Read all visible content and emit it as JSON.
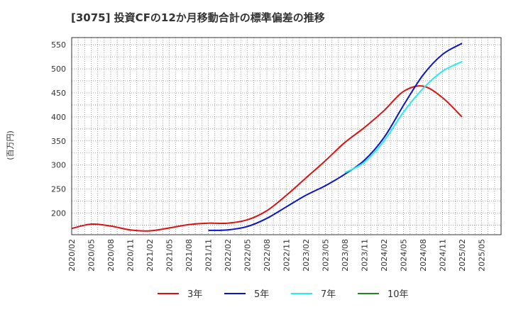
{
  "chart_data": {
    "type": "line",
    "title": "[3075]  投資CFの12か月移動合計の標準偏差の推移",
    "ylabel": "(百万円)",
    "xlabel": "",
    "ylim": [
      155,
      565
    ],
    "yticks": [
      200,
      250,
      300,
      350,
      400,
      450,
      500,
      550
    ],
    "xticks": [
      "2020/02",
      "2020/05",
      "2020/08",
      "2020/11",
      "2021/02",
      "2021/05",
      "2021/08",
      "2021/11",
      "2022/02",
      "2022/05",
      "2022/08",
      "2022/11",
      "2023/02",
      "2023/05",
      "2023/08",
      "2023/11",
      "2024/02",
      "2024/05",
      "2024/08",
      "2024/11",
      "2025/02",
      "2025/05"
    ],
    "grid": true,
    "legend_position": "bottom",
    "series": [
      {
        "name": "3年",
        "color": "#dd1111",
        "x": [
          "2020/02",
          "2020/05",
          "2020/08",
          "2020/11",
          "2021/02",
          "2021/05",
          "2021/08",
          "2021/11",
          "2022/02",
          "2022/05",
          "2022/08",
          "2022/11",
          "2023/02",
          "2023/05",
          "2023/08",
          "2023/11",
          "2024/02",
          "2024/05",
          "2024/08",
          "2024/11",
          "2025/02"
        ],
        "values": [
          168,
          177,
          173,
          165,
          163,
          169,
          176,
          179,
          179,
          186,
          205,
          237,
          273,
          309,
          347,
          378,
          413,
          453,
          464,
          440,
          400
        ]
      },
      {
        "name": "5年",
        "color": "#0a14c8",
        "x": [
          "2021/11",
          "2022/02",
          "2022/05",
          "2022/08",
          "2022/11",
          "2023/02",
          "2023/05",
          "2023/08",
          "2023/11",
          "2024/02",
          "2024/05",
          "2024/08",
          "2024/11",
          "2025/02"
        ],
        "values": [
          164,
          165,
          172,
          189,
          213,
          237,
          257,
          281,
          310,
          357,
          424,
          487,
          530,
          553
        ]
      },
      {
        "name": "7年",
        "color": "#22eeee",
        "x": [
          "2023/08",
          "2023/11",
          "2024/02",
          "2024/05",
          "2024/08",
          "2024/11",
          "2025/02"
        ],
        "values": [
          284,
          306,
          350,
          410,
          459,
          495,
          515
        ]
      },
      {
        "name": "10年",
        "color": "#228822",
        "x": [],
        "values": []
      }
    ]
  }
}
